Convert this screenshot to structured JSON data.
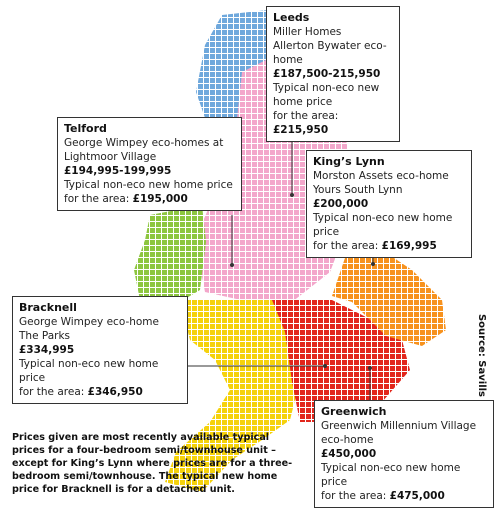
{
  "callouts": [
    {
      "name": "Leeds",
      "lines": [
        "Miller Homes",
        "Allerton Bywater eco-home"
      ],
      "price": "£187,500-215,950",
      "note": "Typical non-eco new home price",
      "area_label": "for the area:",
      "area_price": "£215,950"
    },
    {
      "name": "Telford",
      "lines": [
        "George Wimpey eco-homes at",
        "Lightmoor Village"
      ],
      "price": "£194,995-199,995",
      "note": "Typical non-eco new home price",
      "area_label": "for the area:",
      "area_price": "£195,000"
    },
    {
      "name": "King’s Lynn",
      "lines": [
        "Morston Assets eco-home",
        "Yours South Lynn"
      ],
      "price": "£200,000",
      "note": "Typical non-eco new home price",
      "area_label": "for the area:",
      "area_price": "£169,995"
    },
    {
      "name": "Bracknell",
      "lines": [
        "George Wimpey eco-home",
        "The Parks"
      ],
      "price": "£334,995",
      "note": "Typical non-eco new home price",
      "area_label": "for the area:",
      "area_price": "£346,950"
    },
    {
      "name": "Greenwich",
      "lines": [
        "Greenwich Millennium Village",
        "eco-home"
      ],
      "price": "£450,000",
      "note": "Typical non-eco new home price",
      "area_label": "for the area:",
      "area_price": "£475,000"
    }
  ],
  "footnote": [
    "Prices given are most recently available typical",
    "prices for a four-bedroom semi/townhouse unit –",
    "except for King’s Lynn where prices are for a three-",
    "bedroom semi/townhouse. The typical new home",
    "price for Bracknell is for a detached unit."
  ],
  "source": "Source: Savills"
}
